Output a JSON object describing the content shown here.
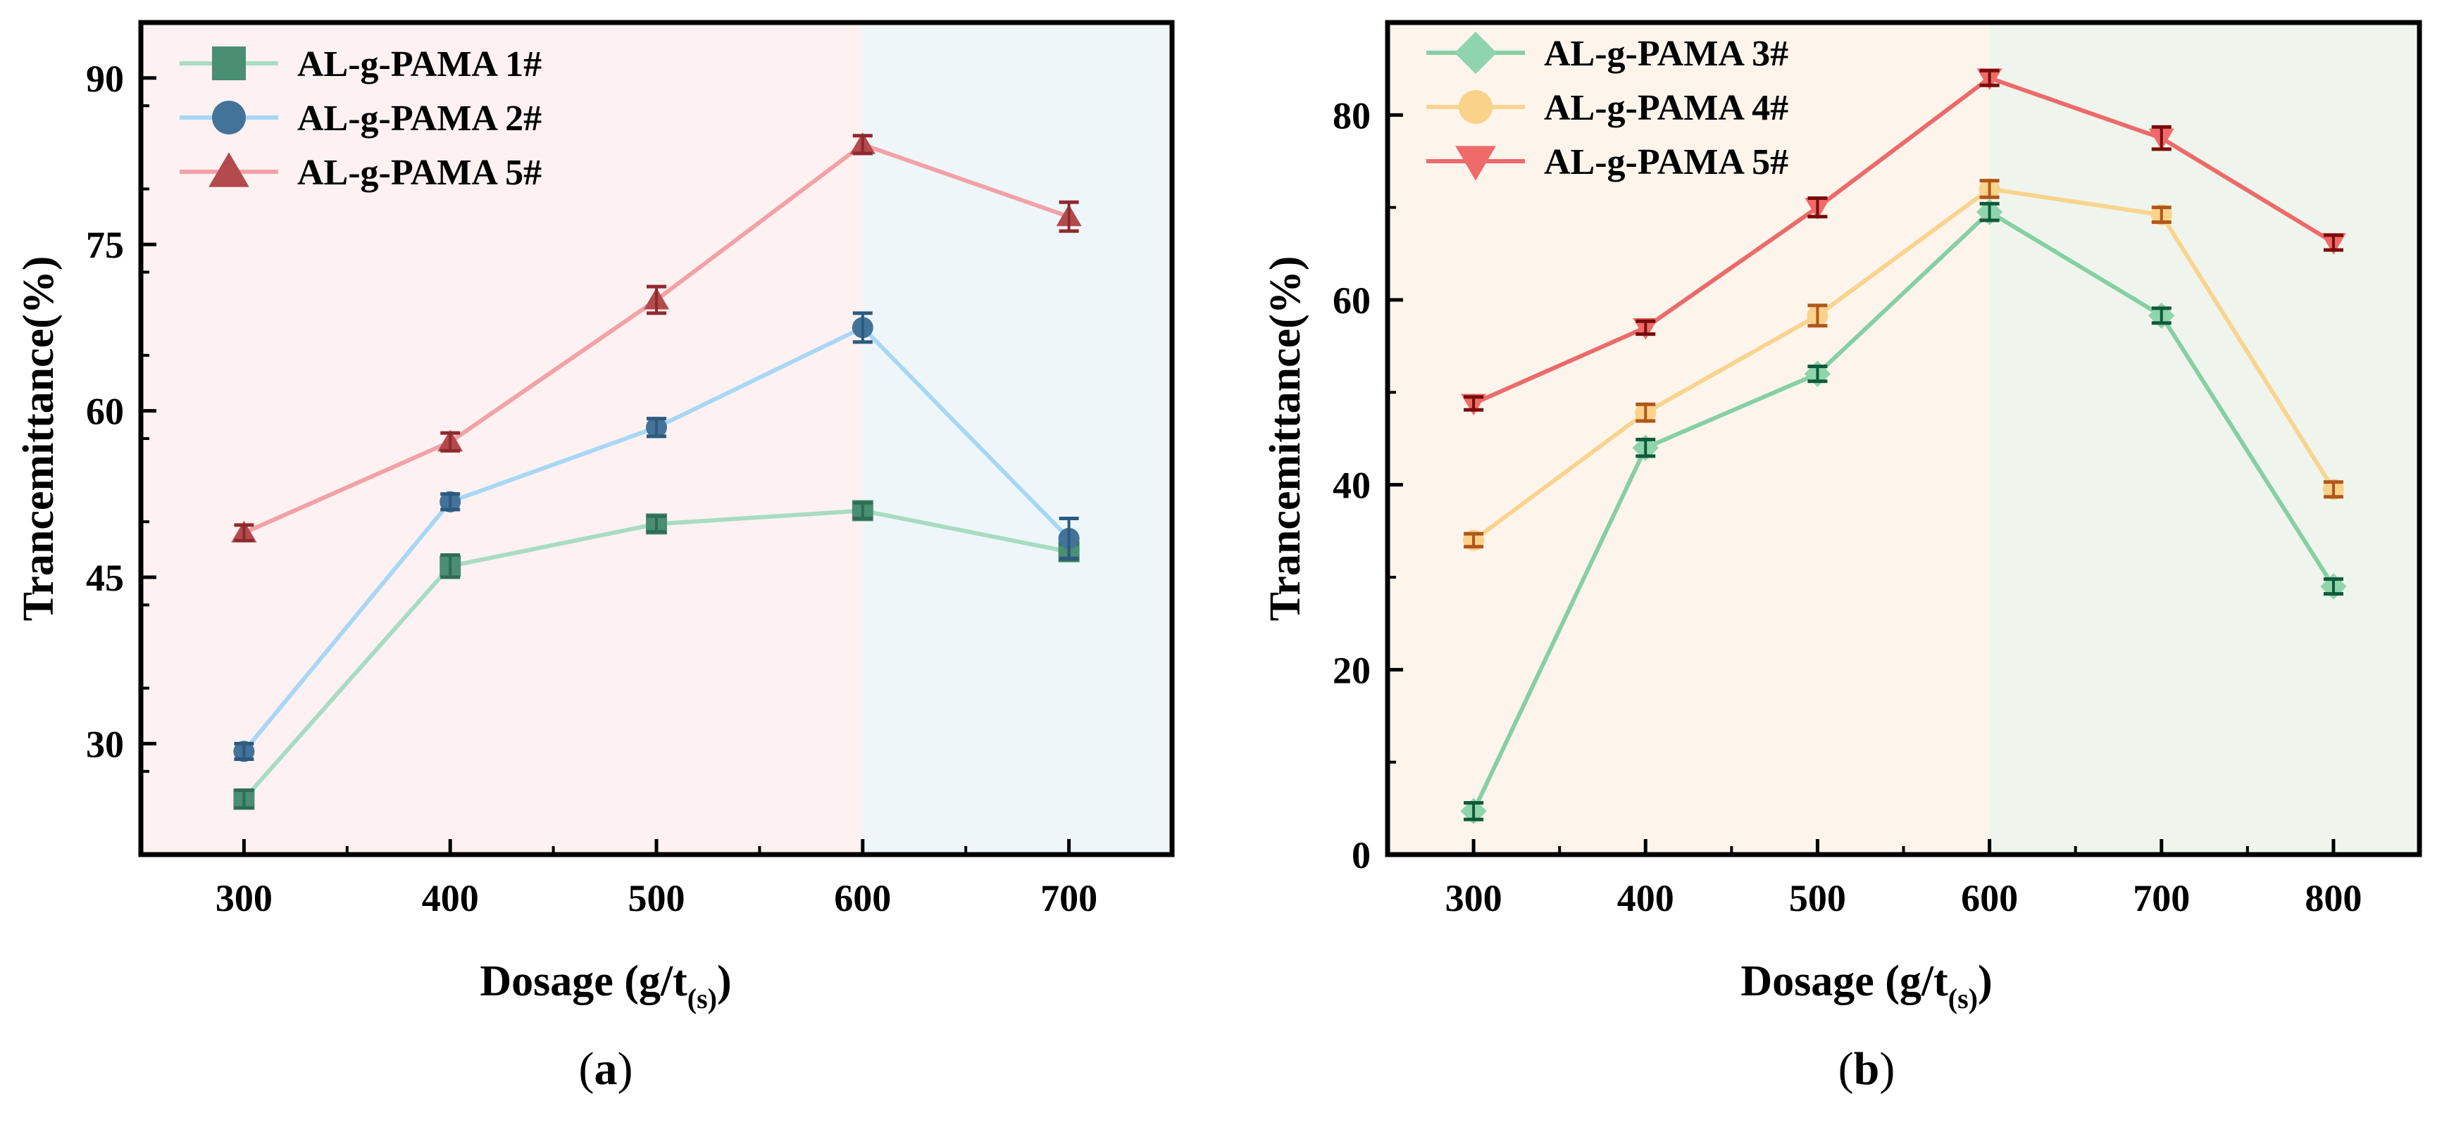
{
  "chart_data": [
    {
      "type": "line",
      "panel_label": "(a)",
      "panel_label_parts": [
        "(",
        "a",
        ")"
      ],
      "xlabel": "Dosage (g/t",
      "xlabel_subscript": "(s)",
      "xlabel_close": ")",
      "ylabel": "Trancemittance(%)",
      "xlim": [
        250,
        750
      ],
      "ylim": [
        20,
        95
      ],
      "xticks": [
        300,
        400,
        500,
        600,
        700
      ],
      "yticks": [
        30,
        45,
        60,
        75,
        90
      ],
      "background_regions": [
        {
          "from": 250,
          "to": 600,
          "color": "#fdf1f1"
        },
        {
          "from": 600,
          "to": 750,
          "color": "#eef6fa"
        }
      ],
      "legend_position": "top-left",
      "series": [
        {
          "name": "AL-g-PAMA 1#",
          "marker": "square",
          "line_color": "#a8dcc2",
          "marker_color": "#4a8f72",
          "err_color": "#2e6e55",
          "x": [
            300,
            400,
            500,
            600,
            700
          ],
          "values": [
            25.0,
            46.0,
            49.8,
            51.0,
            47.3
          ],
          "errors": [
            0.8,
            1.0,
            0.7,
            0.7,
            0.7
          ]
        },
        {
          "name": "AL-g-PAMA 2#",
          "marker": "circle",
          "line_color": "#a8d7f5",
          "marker_color": "#44739a",
          "err_color": "#2c5a80",
          "x": [
            300,
            400,
            500,
            600,
            700
          ],
          "values": [
            29.3,
            51.8,
            58.5,
            67.5,
            48.5
          ],
          "errors": [
            0.7,
            0.7,
            0.8,
            1.3,
            1.8
          ]
        },
        {
          "name": "AL-g-PAMA 5#",
          "marker": "triangle-up",
          "line_color": "#f2a2a6",
          "marker_color": "#b24a4e",
          "err_color": "#8e2a2e",
          "x": [
            300,
            400,
            500,
            600,
            700
          ],
          "values": [
            49.0,
            57.2,
            70.0,
            84.0,
            77.5
          ],
          "errors": [
            0.7,
            0.8,
            1.2,
            0.8,
            1.3
          ]
        }
      ]
    },
    {
      "type": "line",
      "panel_label": "(b)",
      "panel_label_parts": [
        "(",
        "b",
        ")"
      ],
      "xlabel": "Dosage (g/t",
      "xlabel_subscript": "(s)",
      "xlabel_close": ")",
      "ylabel": "Trancemittance(%)",
      "xlim": [
        250,
        850
      ],
      "ylim": [
        0,
        90
      ],
      "xticks": [
        300,
        400,
        500,
        600,
        700,
        800
      ],
      "yticks": [
        0,
        20,
        40,
        60,
        80
      ],
      "background_regions": [
        {
          "from": 250,
          "to": 600,
          "color": "#fdf4ec"
        },
        {
          "from": 600,
          "to": 850,
          "color": "#eff5ec"
        }
      ],
      "legend_position": "top-left",
      "series": [
        {
          "name": "AL-g-PAMA 3#",
          "marker": "diamond",
          "line_color": "#86cfa4",
          "marker_color": "#8fd4ac",
          "err_color": "#0f5a3a",
          "x": [
            300,
            400,
            500,
            600,
            700,
            800
          ],
          "values": [
            4.7,
            44.0,
            52.0,
            69.5,
            58.3,
            29.0
          ],
          "errors": [
            0.9,
            0.9,
            0.8,
            0.9,
            0.8,
            0.8
          ]
        },
        {
          "name": "AL-g-PAMA 4#",
          "marker": "circle",
          "line_color": "#f9d48e",
          "marker_color": "#fad28a",
          "err_color": "#b0561a",
          "x": [
            300,
            400,
            500,
            600,
            700,
            800
          ],
          "values": [
            34.0,
            47.8,
            58.3,
            72.0,
            69.2,
            39.5
          ],
          "errors": [
            0.7,
            0.9,
            1.1,
            0.9,
            0.8,
            0.8
          ]
        },
        {
          "name": "AL-g-PAMA 5#",
          "marker": "triangle-down",
          "line_color": "#ec6a6a",
          "marker_color": "#f06a6a",
          "err_color": "#7a0c0c",
          "x": [
            300,
            400,
            500,
            600,
            700,
            800
          ],
          "values": [
            48.8,
            57.0,
            70.0,
            84.0,
            77.5,
            66.2
          ],
          "errors": [
            0.7,
            0.7,
            1.0,
            0.8,
            1.2,
            0.8
          ]
        }
      ]
    }
  ]
}
